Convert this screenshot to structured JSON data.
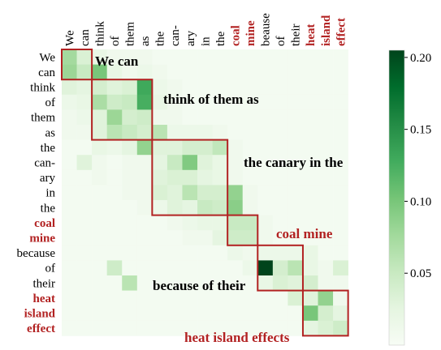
{
  "chart_data": {
    "type": "heatmap",
    "title": "",
    "xlabel": "",
    "ylabel": "",
    "x_tokens": [
      {
        "label": "We",
        "highlight": false
      },
      {
        "label": "can",
        "highlight": false
      },
      {
        "label": "think",
        "highlight": false
      },
      {
        "label": "of",
        "highlight": false
      },
      {
        "label": "them",
        "highlight": false
      },
      {
        "label": "as",
        "highlight": false
      },
      {
        "label": "the",
        "highlight": false
      },
      {
        "label": "can-",
        "highlight": false
      },
      {
        "label": "ary",
        "highlight": false
      },
      {
        "label": "in",
        "highlight": false
      },
      {
        "label": "the",
        "highlight": false
      },
      {
        "label": "coal",
        "highlight": true
      },
      {
        "label": "mine",
        "highlight": true
      },
      {
        "label": "beause",
        "highlight": false
      },
      {
        "label": "of",
        "highlight": false
      },
      {
        "label": "their",
        "highlight": false
      },
      {
        "label": "heat",
        "highlight": true
      },
      {
        "label": "island",
        "highlight": true
      },
      {
        "label": "effect",
        "highlight": true
      }
    ],
    "y_tokens": [
      {
        "label": "We",
        "highlight": false
      },
      {
        "label": "can",
        "highlight": false
      },
      {
        "label": "think",
        "highlight": false
      },
      {
        "label": "of",
        "highlight": false
      },
      {
        "label": "them",
        "highlight": false
      },
      {
        "label": "as",
        "highlight": false
      },
      {
        "label": "the",
        "highlight": false
      },
      {
        "label": "can-",
        "highlight": false
      },
      {
        "label": "ary",
        "highlight": false
      },
      {
        "label": "in",
        "highlight": false
      },
      {
        "label": "the",
        "highlight": false
      },
      {
        "label": "coal",
        "highlight": true
      },
      {
        "label": "mine",
        "highlight": true
      },
      {
        "label": "because",
        "highlight": false
      },
      {
        "label": "of",
        "highlight": false
      },
      {
        "label": "their",
        "highlight": false
      },
      {
        "label": "heat",
        "highlight": true
      },
      {
        "label": "island",
        "highlight": true
      },
      {
        "label": "effect",
        "highlight": true
      }
    ],
    "values": [
      [
        0.075,
        0.035,
        0.02,
        0.01,
        0.01,
        0.01,
        0.005,
        0.005,
        0.005,
        0.005,
        0.005,
        0.005,
        0.005,
        0.005,
        0.005,
        0.005,
        0.005,
        0.005,
        0.005
      ],
      [
        0.08,
        0.05,
        0.1,
        0.02,
        0.01,
        0.015,
        0.01,
        0.005,
        0.005,
        0.005,
        0.005,
        0.005,
        0.005,
        0.005,
        0.005,
        0.005,
        0.005,
        0.005,
        0.005
      ],
      [
        0.03,
        0.025,
        0.04,
        0.03,
        0.035,
        0.13,
        0.015,
        0.01,
        0.005,
        0.005,
        0.005,
        0.005,
        0.005,
        0.005,
        0.005,
        0.005,
        0.005,
        0.005,
        0.005
      ],
      [
        0.015,
        0.02,
        0.07,
        0.045,
        0.05,
        0.125,
        0.02,
        0.01,
        0.005,
        0.005,
        0.005,
        0.005,
        0.005,
        0.005,
        0.005,
        0.005,
        0.005,
        0.005,
        0.005
      ],
      [
        0.01,
        0.015,
        0.03,
        0.08,
        0.04,
        0.045,
        0.01,
        0.01,
        0.005,
        0.005,
        0.005,
        0.005,
        0.005,
        0.005,
        0.005,
        0.005,
        0.005,
        0.005,
        0.005
      ],
      [
        0.01,
        0.01,
        0.03,
        0.06,
        0.05,
        0.04,
        0.06,
        0.015,
        0.015,
        0.015,
        0.01,
        0.005,
        0.005,
        0.005,
        0.005,
        0.005,
        0.005,
        0.005,
        0.005
      ],
      [
        0.005,
        0.005,
        0.02,
        0.015,
        0.025,
        0.085,
        0.03,
        0.03,
        0.04,
        0.04,
        0.055,
        0.01,
        0.005,
        0.005,
        0.005,
        0.005,
        0.005,
        0.005,
        0.005
      ],
      [
        0.005,
        0.03,
        0.01,
        0.005,
        0.01,
        0.01,
        0.025,
        0.05,
        0.095,
        0.03,
        0.02,
        0.01,
        0.005,
        0.005,
        0.005,
        0.005,
        0.005,
        0.005,
        0.005
      ],
      [
        0.005,
        0.005,
        0.01,
        0.005,
        0.01,
        0.01,
        0.03,
        0.035,
        0.035,
        0.025,
        0.02,
        0.01,
        0.005,
        0.005,
        0.005,
        0.005,
        0.005,
        0.005,
        0.005
      ],
      [
        0.005,
        0.005,
        0.005,
        0.005,
        0.01,
        0.01,
        0.035,
        0.03,
        0.06,
        0.04,
        0.04,
        0.085,
        0.01,
        0.005,
        0.005,
        0.005,
        0.005,
        0.005,
        0.005
      ],
      [
        0.005,
        0.005,
        0.005,
        0.005,
        0.005,
        0.01,
        0.015,
        0.03,
        0.025,
        0.05,
        0.045,
        0.09,
        0.01,
        0.005,
        0.005,
        0.005,
        0.005,
        0.005,
        0.005
      ],
      [
        0.005,
        0.005,
        0.005,
        0.005,
        0.005,
        0.005,
        0.005,
        0.01,
        0.015,
        0.02,
        0.02,
        0.05,
        0.05,
        0.01,
        0.005,
        0.005,
        0.005,
        0.005,
        0.005
      ],
      [
        0.005,
        0.005,
        0.005,
        0.005,
        0.005,
        0.005,
        0.005,
        0.005,
        0.01,
        0.01,
        0.025,
        0.045,
        0.045,
        0.01,
        0.005,
        0.005,
        0.005,
        0.005,
        0.005
      ],
      [
        0.005,
        0.005,
        0.005,
        0.005,
        0.005,
        0.005,
        0.005,
        0.005,
        0.005,
        0.005,
        0.005,
        0.015,
        0.01,
        0.015,
        0.015,
        0.015,
        0.02,
        0.005,
        0.005
      ],
      [
        0.005,
        0.005,
        0.005,
        0.045,
        0.005,
        0.005,
        0.005,
        0.005,
        0.005,
        0.005,
        0.005,
        0.005,
        0.015,
        0.205,
        0.04,
        0.06,
        0.02,
        0.01,
        0.035
      ],
      [
        0.005,
        0.005,
        0.005,
        0.005,
        0.06,
        0.005,
        0.005,
        0.005,
        0.005,
        0.005,
        0.005,
        0.005,
        0.005,
        0.02,
        0.035,
        0.03,
        0.04,
        0.01,
        0.01
      ],
      [
        0.005,
        0.005,
        0.005,
        0.005,
        0.005,
        0.005,
        0.005,
        0.005,
        0.005,
        0.005,
        0.005,
        0.005,
        0.005,
        0.005,
        0.005,
        0.035,
        0.03,
        0.085,
        0.01
      ],
      [
        0.005,
        0.005,
        0.005,
        0.005,
        0.005,
        0.005,
        0.005,
        0.005,
        0.005,
        0.005,
        0.005,
        0.005,
        0.005,
        0.005,
        0.005,
        0.005,
        0.1,
        0.04,
        0.025
      ],
      [
        0.005,
        0.005,
        0.005,
        0.005,
        0.005,
        0.005,
        0.005,
        0.005,
        0.005,
        0.005,
        0.005,
        0.005,
        0.005,
        0.005,
        0.005,
        0.005,
        0.025,
        0.035,
        0.045
      ]
    ],
    "colorbar": {
      "min": 0.0,
      "max": 0.205,
      "ticks": [
        0.05,
        0.1,
        0.15,
        0.2
      ],
      "tick_labels": [
        "0.05",
        "0.10",
        "0.15",
        "0.20"
      ],
      "low_color": "#f7fcf5",
      "high_color": "#00441b"
    },
    "boxes": [
      {
        "start": 0,
        "end": 1,
        "label": "We can",
        "label_color": "#000000"
      },
      {
        "start": 2,
        "end": 5,
        "label": "think of them as",
        "label_color": "#000000"
      },
      {
        "start": 6,
        "end": 10,
        "label": "the canary in the",
        "label_color": "#000000"
      },
      {
        "start": 11,
        "end": 12,
        "label": "coal mine",
        "label_color": "#b22222"
      },
      {
        "start": 13,
        "end": 15,
        "label": "because of their",
        "label_color": "#000000"
      },
      {
        "start": 16,
        "end": 18,
        "label": "heat island effects",
        "label_color": "#b22222"
      }
    ],
    "box_color": "#b22222",
    "highlight_color": "#b22222",
    "grid": false
  }
}
